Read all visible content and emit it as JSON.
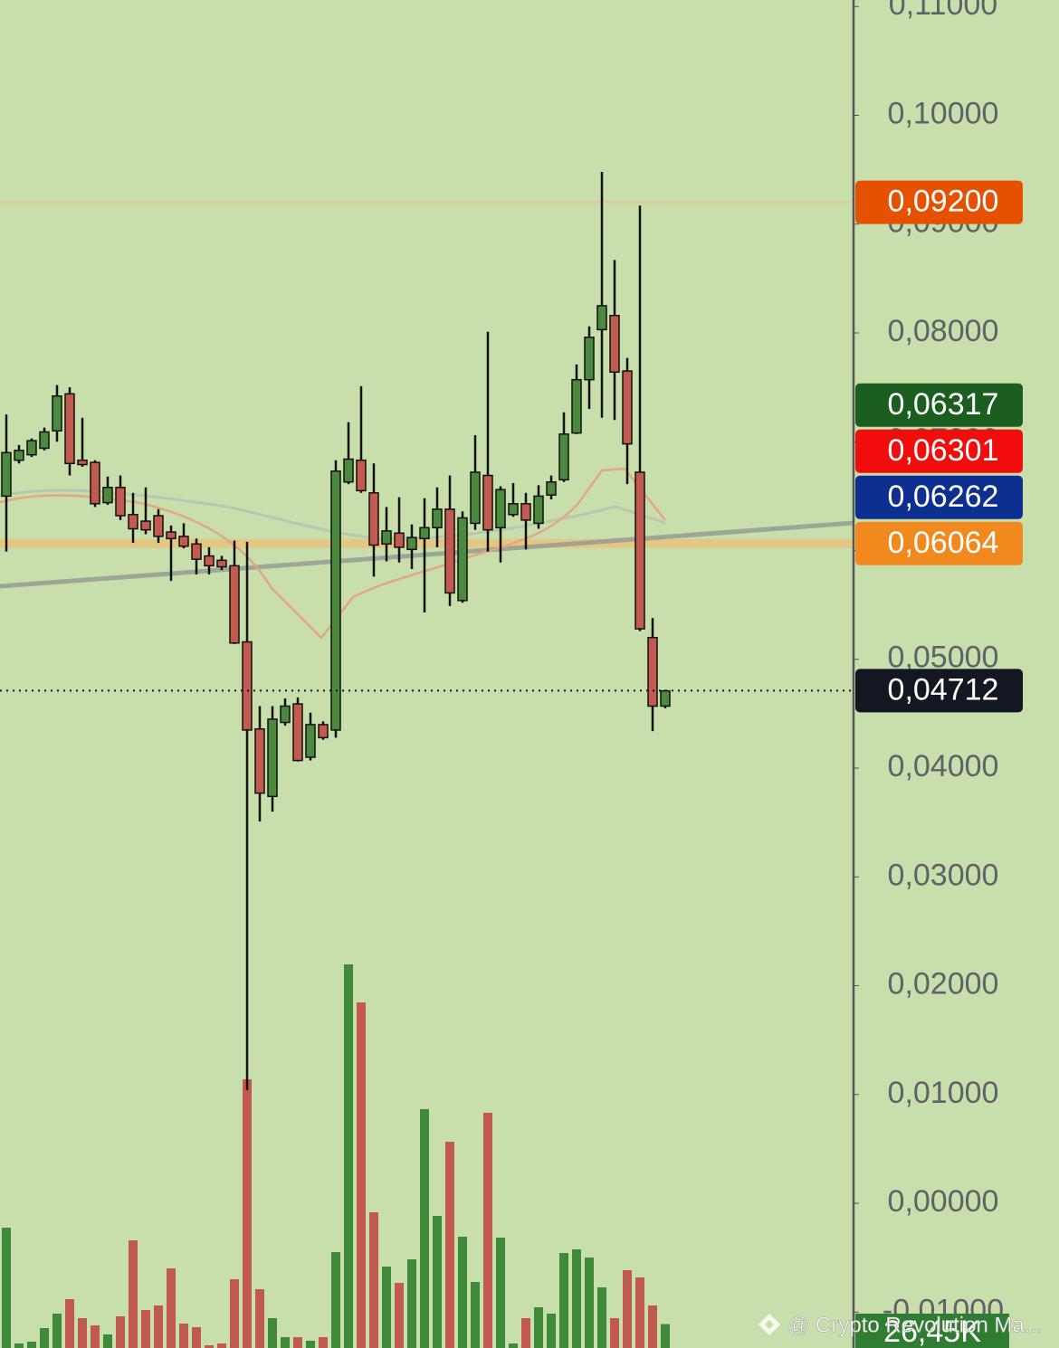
{
  "chart_data": {
    "type": "candlestick",
    "ylim": [
      -0.0133,
      0.1106
    ],
    "yticks": [
      {
        "value": 0.11,
        "label": "0,11000"
      },
      {
        "value": 0.1,
        "label": "0,10000"
      },
      {
        "value": 0.09,
        "label": "0,09000"
      },
      {
        "value": 0.08,
        "label": "0,08000"
      },
      {
        "value": 0.07,
        "label": "0,07000"
      },
      {
        "value": 0.06,
        "label": "0,06000"
      },
      {
        "value": 0.05,
        "label": "0,05000"
      },
      {
        "value": 0.04,
        "label": "0,04000"
      },
      {
        "value": 0.03,
        "label": "0,03000"
      },
      {
        "value": 0.02,
        "label": "0,02000"
      },
      {
        "value": 0.01,
        "label": "0,01000"
      },
      {
        "value": 0,
        "label": "0,00000"
      },
      {
        "value": -0.01,
        "label": "-0,01000"
      }
    ],
    "up_color": "#4a8a3f",
    "down_color": "#c25a50",
    "open": [
      0.065,
      0.0683,
      0.0688,
      0.0694,
      0.071,
      0.0744,
      0.0683,
      0.0681,
      0.0644,
      0.0658,
      0.0633,
      0.0627,
      0.0632,
      0.0617,
      0.0613,
      0.0606,
      0.0595,
      0.0591,
      0.0586,
      0.0516,
      0.0436,
      0.0374,
      0.0442,
      0.0459,
      0.041,
      0.044,
      0.0435,
      0.0663,
      0.0683,
      0.0653,
      0.0606,
      0.0616,
      0.0601,
      0.0611,
      0.0621,
      0.0638,
      0.0554,
      0.0625,
      0.0669,
      0.0621,
      0.0633,
      0.0643,
      0.0625,
      0.0651,
      0.0665,
      0.0708,
      0.0757,
      0.0803,
      0.0816,
      0.0765,
      0.0672,
      0.052,
      0.0457
    ],
    "high": [
      0.0725,
      0.0697,
      0.0703,
      0.0713,
      0.0752,
      0.075,
      0.0722,
      0.0683,
      0.0668,
      0.0669,
      0.0653,
      0.0658,
      0.0638,
      0.0623,
      0.0625,
      0.0611,
      0.0603,
      0.0595,
      0.0609,
      0.0608,
      0.0457,
      0.0457,
      0.0464,
      0.0465,
      0.0451,
      0.0443,
      0.0683,
      0.0718,
      0.0751,
      0.068,
      0.064,
      0.0649,
      0.0624,
      0.0648,
      0.0658,
      0.0669,
      0.0636,
      0.0706,
      0.0801,
      0.0659,
      0.0662,
      0.0653,
      0.066,
      0.0669,
      0.0727,
      0.0771,
      0.0806,
      0.0948,
      0.0867,
      0.0777,
      0.0917,
      0.0538,
      0.0472
    ],
    "low": [
      0.0599,
      0.068,
      0.0686,
      0.0692,
      0.07,
      0.0669,
      0.0677,
      0.064,
      0.0642,
      0.0628,
      0.0607,
      0.0615,
      0.0607,
      0.0572,
      0.0602,
      0.0578,
      0.0578,
      0.0582,
      0.0514,
      0.0104,
      0.0351,
      0.036,
      0.0439,
      0.0406,
      0.0407,
      0.0426,
      0.0428,
      0.0661,
      0.0653,
      0.0576,
      0.059,
      0.0589,
      0.0583,
      0.0543,
      0.0603,
      0.0549,
      0.0552,
      0.0619,
      0.0599,
      0.0589,
      0.0631,
      0.0601,
      0.062,
      0.0647,
      0.0663,
      0.0707,
      0.073,
      0.0722,
      0.072,
      0.0661,
      0.0526,
      0.0434,
      0.0455
    ],
    "close": [
      0.069,
      0.0692,
      0.0701,
      0.0709,
      0.0742,
      0.068,
      0.0679,
      0.0643,
      0.0658,
      0.0632,
      0.062,
      0.0619,
      0.0613,
      0.0611,
      0.0604,
      0.0592,
      0.0586,
      0.0585,
      0.0515,
      0.0435,
      0.0377,
      0.0445,
      0.0457,
      0.0407,
      0.044,
      0.0428,
      0.0673,
      0.0684,
      0.0655,
      0.0605,
      0.0618,
      0.0603,
      0.0612,
      0.0621,
      0.0638,
      0.0561,
      0.063,
      0.0672,
      0.0619,
      0.0656,
      0.0643,
      0.0628,
      0.065,
      0.0663,
      0.0707,
      0.0757,
      0.0796,
      0.0825,
      0.0764,
      0.0698,
      0.0528,
      0.0457,
      0.0471
    ],
    "volume": [
      133,
      5,
      7,
      22,
      38,
      54,
      33,
      25,
      15,
      35,
      119,
      42,
      47,
      88,
      27,
      23,
      3,
      5,
      76,
      297,
      65,
      33,
      12,
      12,
      8,
      12,
      106,
      424,
      382,
      150,
      90,
      72,
      98,
      264,
      146,
      228,
      123,
      73,
      260,
      122,
      5,
      33,
      45,
      38,
      105,
      109,
      100,
      67,
      33,
      86,
      78,
      47,
      26.45
    ],
    "volume_label": "26,45K",
    "price_labels": [
      {
        "value": 0.092,
        "label": "0,09200",
        "color": "#e65100",
        "line_style": "thin"
      },
      {
        "value": 0.06317,
        "label": "0,06317",
        "color": "#1b5e20"
      },
      {
        "value": 0.06301,
        "label": "0,06301",
        "color": "#f20d0d"
      },
      {
        "value": 0.06262,
        "label": "0,06262",
        "color": "#0d2f8f"
      },
      {
        "value": 0.06064,
        "label": "0,06064",
        "color": "#f2891f",
        "line_style": "band"
      },
      {
        "value": 0.04712,
        "label": "0,04712",
        "color": "#131722",
        "line_style": "dotted"
      }
    ],
    "watermark": "@ Crypto Revolution Ma..."
  }
}
